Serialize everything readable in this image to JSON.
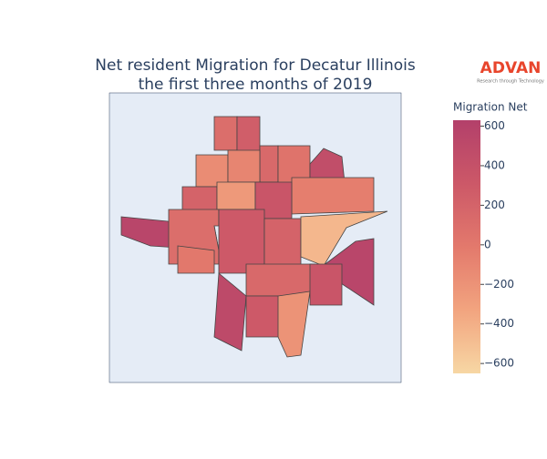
{
  "chart_data": {
    "type": "choropleth",
    "title": [
      "Net resident Migration for Decatur Illinois",
      "the first three months of 2019"
    ],
    "colorbar_title": "Migration Net",
    "zlim": [
      -650,
      630
    ],
    "zticks": [
      {
        "value": -600,
        "label": "−600"
      },
      {
        "value": -400,
        "label": "−400"
      },
      {
        "value": -200,
        "label": "−200"
      },
      0,
      200,
      400,
      600
    ],
    "colorscale": [
      "#f7d7a4",
      "#f2a47f",
      "#e3796c",
      "#cc5868",
      "#b3406a"
    ],
    "values": [
      100,
      250,
      150,
      -150,
      -100,
      50,
      450,
      -50,
      200,
      -250,
      350,
      550,
      100,
      300,
      200,
      -450,
      550,
      150,
      500,
      300,
      -200,
      350,
      0
    ]
  },
  "logo": {
    "name": "ADVAN",
    "tagline": "Research through Technology"
  }
}
